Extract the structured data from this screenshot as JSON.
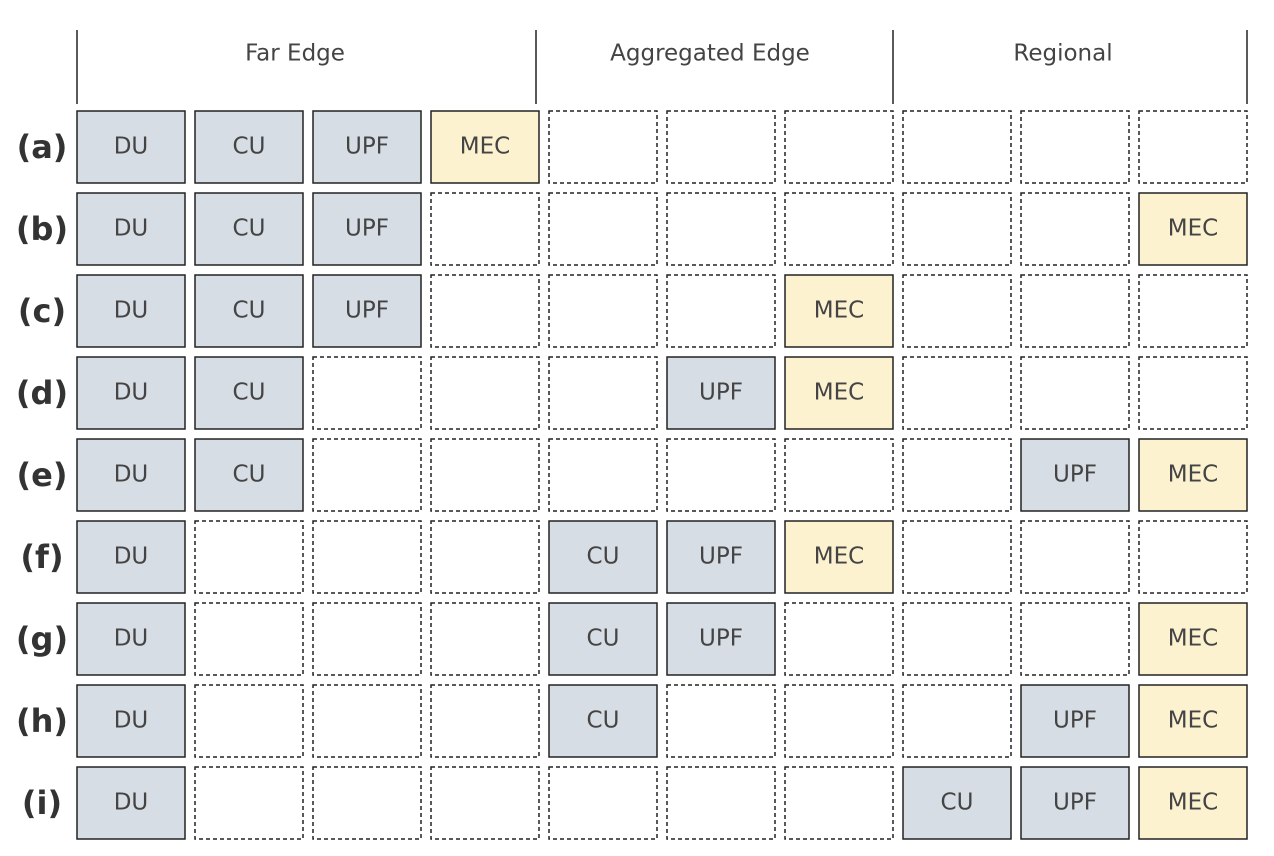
{
  "header": {
    "groups": [
      "Far Edge",
      "Aggregated Edge",
      "Regional"
    ]
  },
  "rows": [
    {
      "label": "(a)",
      "cells": [
        {
          "text": "DU",
          "color": "#d7dde4"
        },
        {
          "text": "CU",
          "color": "#d7dde4"
        },
        {
          "text": "UPF",
          "color": "#d7dde4"
        },
        {
          "text": "MEC",
          "color": "#fcf2d0"
        },
        null,
        null,
        null,
        null,
        null,
        null
      ]
    },
    {
      "label": "(b)",
      "cells": [
        {
          "text": "DU",
          "color": "#d7dde4"
        },
        {
          "text": "CU",
          "color": "#d7dde4"
        },
        {
          "text": "UPF",
          "color": "#d7dde4"
        },
        null,
        null,
        null,
        null,
        null,
        null,
        {
          "text": "MEC",
          "color": "#fcf2d0"
        }
      ]
    },
    {
      "label": "(c)",
      "cells": [
        {
          "text": "DU",
          "color": "#d7dde4"
        },
        {
          "text": "CU",
          "color": "#d7dde4"
        },
        {
          "text": "UPF",
          "color": "#d7dde4"
        },
        null,
        null,
        null,
        {
          "text": "MEC",
          "color": "#fcf2d0"
        },
        null,
        null,
        null
      ]
    },
    {
      "label": "(d)",
      "cells": [
        {
          "text": "DU",
          "color": "#d7dde4"
        },
        {
          "text": "CU",
          "color": "#d7dde4"
        },
        null,
        null,
        null,
        {
          "text": "UPF",
          "color": "#d7dde4"
        },
        {
          "text": "MEC",
          "color": "#fcf2d0"
        },
        null,
        null,
        null
      ]
    },
    {
      "label": "(e)",
      "cells": [
        {
          "text": "DU",
          "color": "#d7dde4"
        },
        {
          "text": "CU",
          "color": "#d7dde4"
        },
        null,
        null,
        null,
        null,
        null,
        null,
        {
          "text": "UPF",
          "color": "#d7dde4"
        },
        {
          "text": "MEC",
          "color": "#fcf2d0"
        }
      ]
    },
    {
      "label": "(f)",
      "cells": [
        {
          "text": "DU",
          "color": "#d7dde4"
        },
        null,
        null,
        null,
        {
          "text": "CU",
          "color": "#d7dde4"
        },
        {
          "text": "UPF",
          "color": "#d7dde4"
        },
        {
          "text": "MEC",
          "color": "#fcf2d0"
        },
        null,
        null,
        null
      ]
    },
    {
      "label": "(g)",
      "cells": [
        {
          "text": "DU",
          "color": "#d7dde4"
        },
        null,
        null,
        null,
        {
          "text": "CU",
          "color": "#d7dde4"
        },
        {
          "text": "UPF",
          "color": "#d7dde4"
        },
        null,
        null,
        null,
        {
          "text": "MEC",
          "color": "#fcf2d0"
        }
      ]
    },
    {
      "label": "(h)",
      "cells": [
        {
          "text": "DU",
          "color": "#d7dde4"
        },
        null,
        null,
        null,
        {
          "text": "CU",
          "color": "#d7dde4"
        },
        null,
        null,
        null,
        {
          "text": "UPF",
          "color": "#d7dde4"
        },
        {
          "text": "MEC",
          "color": "#fcf2d0"
        }
      ]
    },
    {
      "label": "(i)",
      "cells": [
        {
          "text": "DU",
          "color": "#d7dde4"
        },
        null,
        null,
        null,
        null,
        null,
        null,
        {
          "text": "CU",
          "color": "#d7dde4"
        },
        {
          "text": "UPF",
          "color": "#d7dde4"
        },
        {
          "text": "MEC",
          "color": "#fcf2d0"
        }
      ]
    }
  ]
}
